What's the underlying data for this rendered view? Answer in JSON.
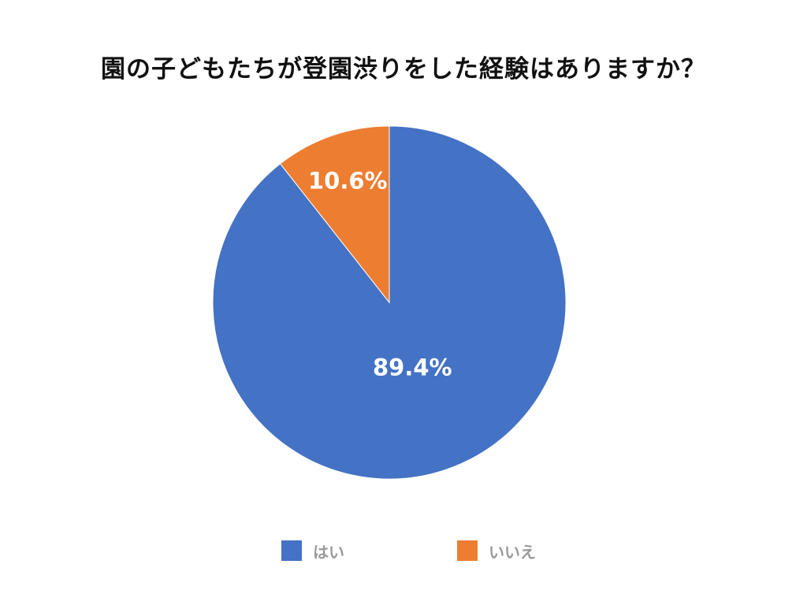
{
  "chart_data": {
    "type": "pie",
    "title": "園の子どもたちが登園渋りをした経験はありますか？",
    "slices": [
      {
        "label": "はい",
        "value": 89.4,
        "display": "89.4%",
        "color": "#4472C4"
      },
      {
        "label": "いいえ",
        "value": 10.6,
        "display": "10.6%",
        "color": "#ED7D31"
      }
    ],
    "start": "12 o'clock",
    "direction": "clockwise",
    "legend": "bottom"
  }
}
